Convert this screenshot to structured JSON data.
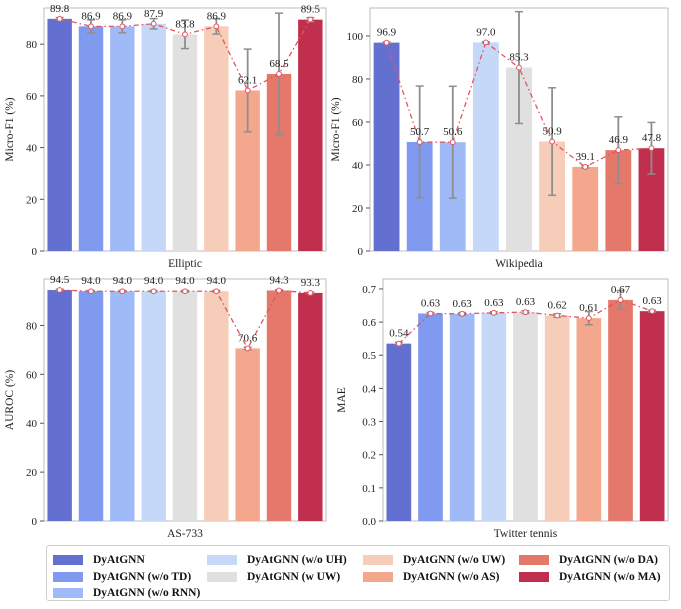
{
  "chart_data": [
    {
      "type": "bar",
      "title": "",
      "xlabel": "Elliptic",
      "ylabel": "Micro-F1 (%)",
      "ylim": [
        0,
        94
      ],
      "yticks": [
        0,
        20,
        40,
        60,
        80
      ],
      "tick_labels": [
        "0",
        "20",
        "40",
        "60",
        "80"
      ],
      "categories": [
        "DyAtGNN",
        "DyAtGNN (w/o TD)",
        "DyAtGNN (w/o RNN)",
        "DyAtGNN (w/o UH)",
        "DyAtGNN (w UW)",
        "DyAtGNN (w/o UW)",
        "DyAtGNN (w/o AS)",
        "DyAtGNN (w/o DA)",
        "DyAtGNN (w/o MA)"
      ],
      "values": [
        89.8,
        86.9,
        86.9,
        87.9,
        83.8,
        86.9,
        62.1,
        68.5,
        89.5
      ],
      "value_labels": [
        "89.8",
        "86.9",
        "86.9",
        "87.9",
        "83.8",
        "86.9",
        "62.1",
        "68.5",
        "89.5"
      ],
      "error": [
        0.5,
        2.5,
        2.5,
        2.0,
        5.5,
        3.0,
        16.0,
        23.5,
        0.8
      ]
    },
    {
      "type": "bar",
      "title": "",
      "xlabel": "Wikipedia",
      "ylabel": "Micro-F1 (%)",
      "ylim": [
        0,
        113
      ],
      "yticks": [
        0,
        20,
        40,
        60,
        80,
        100
      ],
      "tick_labels": [
        "0",
        "20",
        "40",
        "60",
        "80",
        "100"
      ],
      "categories": [
        "DyAtGNN",
        "DyAtGNN (w/o TD)",
        "DyAtGNN (w/o RNN)",
        "DyAtGNN (w/o UH)",
        "DyAtGNN (w UW)",
        "DyAtGNN (w/o UW)",
        "DyAtGNN (w/o AS)",
        "DyAtGNN (w/o DA)",
        "DyAtGNN (w/o MA)"
      ],
      "values": [
        96.9,
        50.7,
        50.6,
        97.0,
        85.3,
        50.9,
        39.1,
        46.9,
        47.8
      ],
      "value_labels": [
        "96.9",
        "50.7",
        "50.6",
        "97.0",
        "85.3",
        "50.9",
        "39.1",
        "46.9",
        "47.8"
      ],
      "error": [
        0.3,
        26.0,
        26.0,
        0.3,
        26.0,
        25.0,
        0.5,
        15.5,
        12.0
      ]
    },
    {
      "type": "bar",
      "title": "",
      "xlabel": "AS-733",
      "ylabel": "AUROC (%)",
      "ylim": [
        0,
        99
      ],
      "yticks": [
        0,
        20,
        40,
        60,
        80
      ],
      "tick_labels": [
        "0",
        "20",
        "40",
        "60",
        "80"
      ],
      "categories": [
        "DyAtGNN",
        "DyAtGNN (w/o TD)",
        "DyAtGNN (w/o RNN)",
        "DyAtGNN (w/o UH)",
        "DyAtGNN (w UW)",
        "DyAtGNN (w/o UW)",
        "DyAtGNN (w/o AS)",
        "DyAtGNN (w/o DA)",
        "DyAtGNN (w/o MA)"
      ],
      "values": [
        94.5,
        94.0,
        94.0,
        94.0,
        94.0,
        94.0,
        70.6,
        94.3,
        93.3
      ],
      "value_labels": [
        "94.5",
        "94.0",
        "94.0",
        "94.0",
        "94.0",
        "94.0",
        "70.6",
        "94.3",
        "93.3"
      ],
      "error": [
        0.3,
        0.3,
        0.3,
        0.3,
        0.3,
        0.3,
        0.5,
        0.3,
        0.3
      ]
    },
    {
      "type": "bar",
      "title": "",
      "xlabel": "Twitter tennis",
      "ylabel": "MAE",
      "ylim": [
        0,
        0.73
      ],
      "yticks": [
        0.0,
        0.1,
        0.2,
        0.3,
        0.4,
        0.5,
        0.6,
        0.7
      ],
      "tick_labels": [
        "0.0",
        "0.1",
        "0.2",
        "0.3",
        "0.4",
        "0.5",
        "0.6",
        "0.7"
      ],
      "categories": [
        "DyAtGNN",
        "DyAtGNN (w/o TD)",
        "DyAtGNN (w/o RNN)",
        "DyAtGNN (w/o UH)",
        "DyAtGNN (w UW)",
        "DyAtGNN (w/o UW)",
        "DyAtGNN (w/o AS)",
        "DyAtGNN (w/o DA)",
        "DyAtGNN (w/o MA)"
      ],
      "values": [
        0.535,
        0.626,
        0.625,
        0.628,
        0.63,
        0.62,
        0.612,
        0.667,
        0.633
      ],
      "value_labels": [
        "0.54",
        "0.63",
        "0.63",
        "0.63",
        "0.63",
        "0.62",
        "0.61",
        "0.67",
        "0.63"
      ],
      "error": [
        0.004,
        0.003,
        0.004,
        0.003,
        0.004,
        0.005,
        0.02,
        0.028,
        0.003
      ]
    }
  ],
  "legend": {
    "placement": "bottom",
    "entries": [
      {
        "label": "DyAtGNN",
        "color": "#6470d0"
      },
      {
        "label": "DyAtGNN (w/o TD)",
        "color": "#7f9aee"
      },
      {
        "label": "DyAtGNN (w/o RNN)",
        "color": "#a0baf8"
      },
      {
        "label": "DyAtGNN (w/o UH)",
        "color": "#c5d8f7"
      },
      {
        "label": "DyAtGNN (w UW)",
        "color": "#e0e0e0"
      },
      {
        "label": "DyAtGNN (w/o UW)",
        "color": "#f6cdb9"
      },
      {
        "label": "DyAtGNN (w/o AS)",
        "color": "#f3a88d"
      },
      {
        "label": "DyAtGNN (w/o DA)",
        "color": "#e4786a"
      },
      {
        "label": "DyAtGNN (w/o MA)",
        "color": "#c0304e"
      }
    ]
  },
  "trend_line_color": "#e05560",
  "error_bar_color": "#8e8e8e"
}
